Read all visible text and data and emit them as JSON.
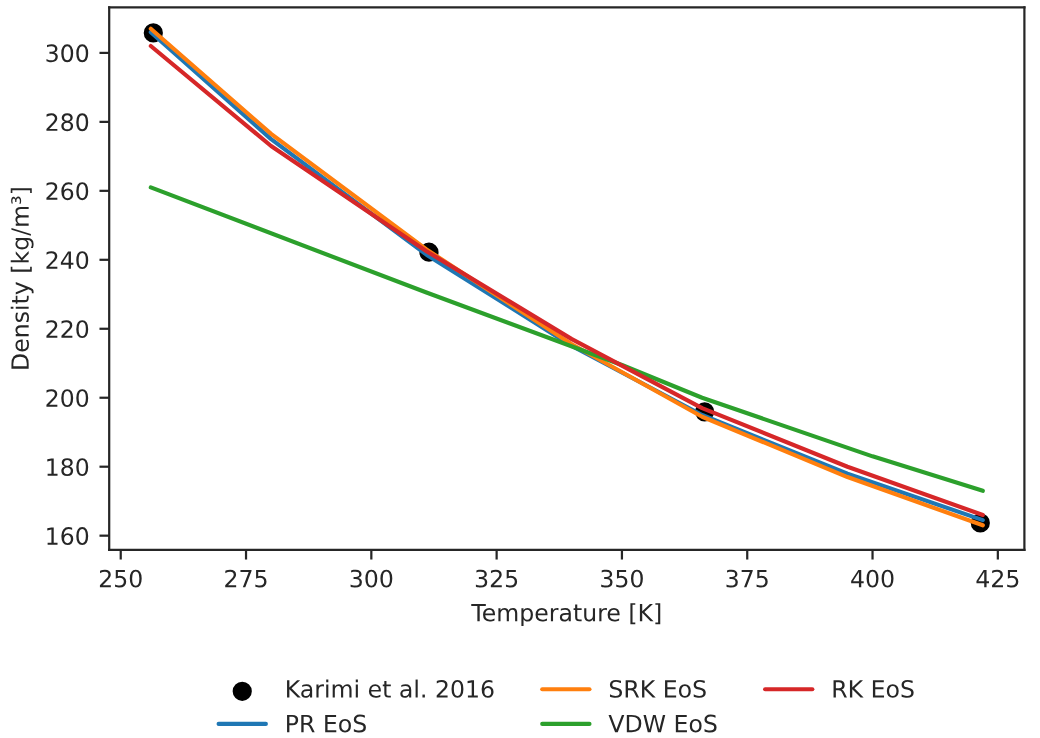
{
  "chart_data": {
    "type": "line",
    "xlabel": "Temperature [K]",
    "ylabel": "Density [kg/m³]",
    "xlim": [
      247.7,
      430.3
    ],
    "xticks": [
      250,
      275,
      300,
      325,
      350,
      375,
      400,
      425
    ],
    "ylim": [
      155.9,
      313.2
    ],
    "yticks": [
      160,
      180,
      200,
      220,
      240,
      260,
      280,
      300
    ],
    "grid": false,
    "legend": "bottom",
    "marker": "none",
    "line_style": "solid",
    "series": [
      {
        "name": "Karimi et al. 2016",
        "type": "scatter",
        "marker": "circle",
        "color": "#000000",
        "x": [
          256.5,
          311.5,
          366.5,
          421.5
        ],
        "values": [
          305.8,
          242.2,
          195.9,
          163.7
        ]
      },
      {
        "name": "PR EoS",
        "color": "#1f77b4",
        "x": [
          256,
          280,
          311,
          340,
          366,
          395,
          422
        ],
        "values": [
          306,
          275,
          241.5,
          215,
          195,
          178,
          164.5
        ]
      },
      {
        "name": "SRK EoS",
        "color": "#ff7f0e",
        "x": [
          256,
          280,
          311,
          340,
          366,
          395,
          422
        ],
        "values": [
          307,
          276.5,
          243,
          215.5,
          194.5,
          177,
          163
        ]
      },
      {
        "name": "VDW EoS",
        "color": "#2ca02c",
        "x": [
          256,
          311,
          350,
          366,
          400,
          422
        ],
        "values": [
          261,
          230.5,
          209.5,
          200,
          183,
          173
        ]
      },
      {
        "name": "RK EoS",
        "color": "#d62728",
        "x": [
          256,
          280,
          311,
          340,
          366,
          395,
          422
        ],
        "values": [
          302,
          273,
          242.5,
          217,
          197,
          180,
          166
        ]
      }
    ]
  }
}
